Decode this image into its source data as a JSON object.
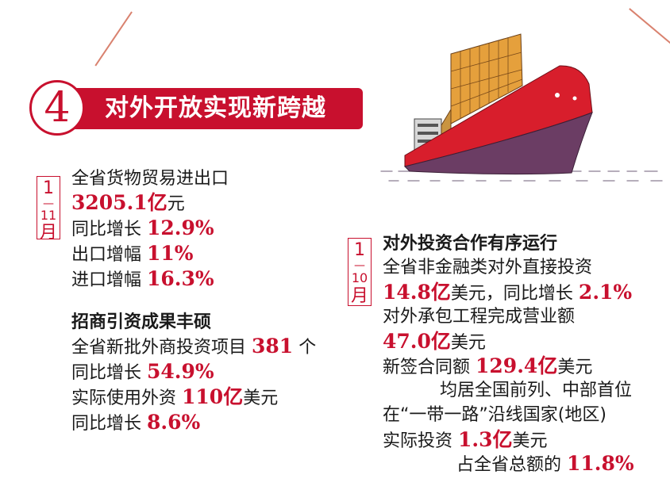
{
  "header": {
    "section_number": "4",
    "title": "对外开放实现新跨越"
  },
  "left_panel": {
    "period_chars": [
      "1",
      "—",
      "11",
      "月"
    ],
    "trade_lines": [
      {
        "text": "全省货物贸易进出口",
        "value": "",
        "unit": "",
        "suffix": ""
      },
      {
        "text": "",
        "value": "3205.1",
        "unit": "亿",
        "suffix": "元"
      },
      {
        "text": "同比增长",
        "value": "12.9%",
        "unit": "",
        "suffix": ""
      },
      {
        "text": "出口增幅",
        "value": "11%",
        "unit": "",
        "suffix": ""
      },
      {
        "text": "进口增幅",
        "value": "16.3%",
        "unit": "",
        "suffix": ""
      }
    ],
    "investment_heading": "招商引资成果丰硕",
    "investment_lines": [
      {
        "text": "全省新批外商投资项目",
        "value": "381",
        "unit": "",
        "suffix": "个"
      },
      {
        "text": "同比增长",
        "value": "54.9%",
        "unit": "",
        "suffix": ""
      },
      {
        "text": "实际使用外资",
        "value": "110",
        "unit": "亿",
        "suffix": "美元"
      },
      {
        "text": "同比增长",
        "value": "8.6%",
        "unit": "",
        "suffix": ""
      }
    ]
  },
  "right_panel": {
    "period_chars": [
      "1",
      "—",
      "10",
      "月"
    ],
    "heading": "对外投资合作有序运行",
    "lines": [
      {
        "text": "全省非金融类对外直接投资",
        "value": "",
        "unit": "",
        "suffix": ""
      },
      {
        "text": "",
        "value": "14.8",
        "unit": "亿",
        "suffix": "美元，同比增长",
        "value2": "2.1%"
      },
      {
        "text": "对外承包工程完成营业额",
        "value": "",
        "unit": "",
        "suffix": ""
      },
      {
        "text": "",
        "value": "47.0",
        "unit": "亿",
        "suffix": "美元"
      },
      {
        "text": "新签合同额",
        "value": "129.4",
        "unit": "亿",
        "suffix": "美元"
      },
      {
        "text": "均居全国前列、中部首位",
        "value": "",
        "unit": "",
        "suffix": ""
      },
      {
        "text": "在“一带一路”沿线国家(地区)",
        "value": "",
        "unit": "",
        "suffix": ""
      },
      {
        "text": "实际投资",
        "value": "1.3",
        "unit": "亿",
        "suffix": "美元"
      },
      {
        "text": "占全省总额的",
        "value": "11.8%",
        "unit": "",
        "suffix": ""
      }
    ]
  },
  "colors": {
    "accent": "#c8102e",
    "hull": "#6b3d64",
    "deck_stripe": "#d81e2c",
    "containers": "#e5a03c"
  },
  "icons": {
    "ship": "container-ship-illustration"
  }
}
